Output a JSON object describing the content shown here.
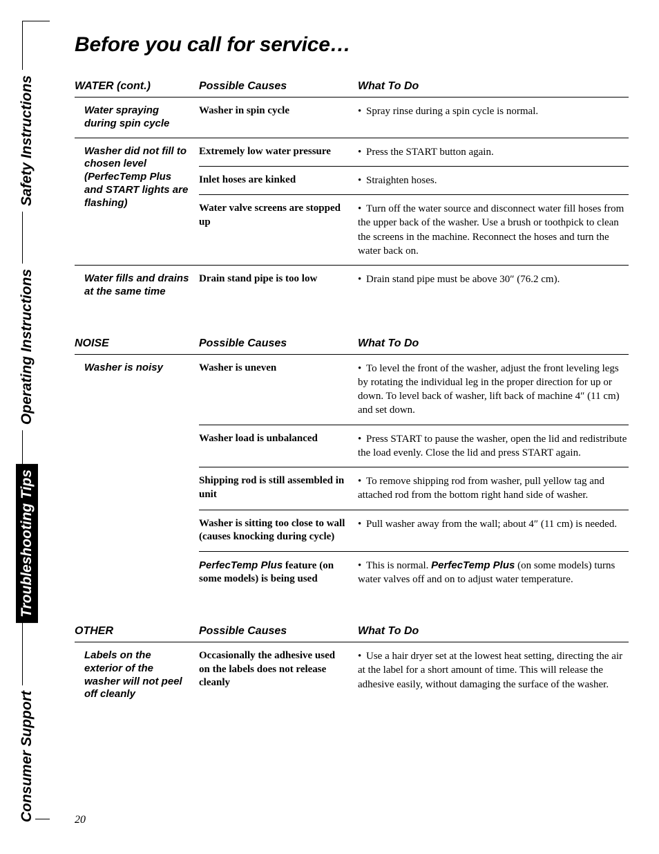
{
  "page_title": "Before you call for service…",
  "page_number": "20",
  "side_tabs": {
    "safety": "Safety Instructions",
    "operating": "Operating Instructions",
    "troubleshooting": "Troubleshooting Tips",
    "support": "Consumer Support"
  },
  "column_headers": {
    "causes": "Possible Causes",
    "todo": "What To Do"
  },
  "sections": [
    {
      "title": "WATER (cont.)",
      "rows": [
        {
          "problem": "Water spraying during spin cycle",
          "cause": "Washer in spin cycle",
          "remedy": "Spray rinse during a spin cycle is normal."
        },
        {
          "problem": "Washer did not fill to chosen level (PerfecTemp Plus and START lights are flashing)",
          "cause": "Extremely low water pressure",
          "remedy": "Press the START button again."
        },
        {
          "cause": "Inlet hoses are kinked",
          "remedy": "Straighten hoses."
        },
        {
          "cause": "Water valve screens are stopped up",
          "remedy": "Turn off the water source and disconnect water fill hoses from the upper back of the washer. Use a brush or toothpick to clean the screens in the machine. Reconnect the hoses and turn the water back on."
        },
        {
          "problem": "Water fills and drains at the same time",
          "cause": "Drain stand pipe is too low",
          "remedy": "Drain stand pipe must be above 30″ (76.2 cm)."
        }
      ]
    },
    {
      "title": "NOISE",
      "rows": [
        {
          "problem": "Washer is noisy",
          "cause": "Washer is uneven",
          "remedy": "To level the front of the washer, adjust the front leveling legs by rotating the individual leg in the proper direction for up or down. To level back of washer, lift back of machine 4″ (11 cm) and set down."
        },
        {
          "cause": "Washer load is unbalanced",
          "remedy": "Press START to pause the washer, open the lid and redistribute the load evenly. Close the lid and press START again."
        },
        {
          "cause": "Shipping rod is still assembled in unit",
          "remedy": "To remove shipping rod from washer, pull yellow tag and attached rod from the bottom right hand side of washer."
        },
        {
          "cause": "Washer is sitting too close to wall (causes knocking during cycle)",
          "remedy": "Pull washer away from the wall; about 4″ (11 cm) is needed."
        },
        {
          "cause_html": "<span class='feat'>PerfecTemp Plus</span> feature (on some models) is being used",
          "remedy_html": "This is normal. <strong class='feat'>PerfecTemp Plus</strong> (on some models) turns water valves off and on to adjust water temperature."
        }
      ]
    },
    {
      "title": "OTHER",
      "rows": [
        {
          "problem": "Labels on the exterior of the washer will not peel off cleanly",
          "cause": "Occasionally the adhesive used on the labels does not release cleanly",
          "remedy": "Use a hair dryer set at the lowest heat setting, directing the air at the label for a short amount of time. This will release the adhesive easily, without damaging the surface of the washer."
        }
      ]
    }
  ]
}
